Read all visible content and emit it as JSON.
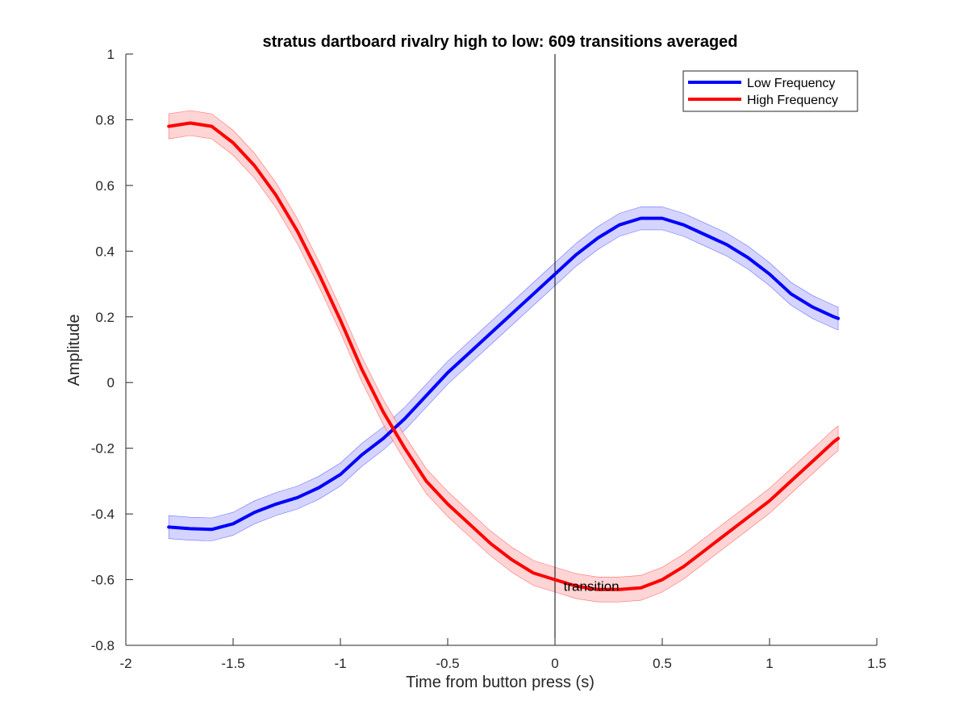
{
  "chart_data": {
    "type": "line",
    "title": "stratus dartboard rivalry high to low: 609 transitions averaged",
    "xlabel": "Time from button press (s)",
    "ylabel": "Amplitude",
    "xlim": [
      -2,
      1.5
    ],
    "ylim": [
      -0.8,
      1
    ],
    "x_ticks": [
      -2,
      -1.5,
      -1,
      -0.5,
      0,
      0.5,
      1,
      1.5
    ],
    "x_tick_labels": [
      "-2",
      "-1.5",
      "-1",
      "-0.5",
      "0",
      "0.5",
      "1",
      "1.5"
    ],
    "y_ticks": [
      -0.8,
      -0.6,
      -0.4,
      -0.2,
      0,
      0.2,
      0.4,
      0.6,
      0.8,
      1
    ],
    "y_tick_labels": [
      "-0.8",
      "-0.6",
      "-0.4",
      "-0.2",
      "0",
      "0.2",
      "0.4",
      "0.6",
      "0.8",
      "1"
    ],
    "grid": false,
    "legend_position": "top-right",
    "x": [
      -1.8,
      -1.7,
      -1.6,
      -1.5,
      -1.4,
      -1.3,
      -1.2,
      -1.1,
      -1.0,
      -0.9,
      -0.8,
      -0.7,
      -0.6,
      -0.5,
      -0.4,
      -0.3,
      -0.2,
      -0.1,
      0.0,
      0.1,
      0.2,
      0.3,
      0.4,
      0.5,
      0.6,
      0.7,
      0.8,
      0.9,
      1.0,
      1.1,
      1.2,
      1.3,
      1.32
    ],
    "series": [
      {
        "name": "Low Frequency",
        "color": "#0000ff",
        "band_color": "#ccccff",
        "values": [
          -0.44,
          -0.445,
          -0.447,
          -0.43,
          -0.395,
          -0.37,
          -0.35,
          -0.32,
          -0.28,
          -0.22,
          -0.17,
          -0.11,
          -0.04,
          0.03,
          0.09,
          0.15,
          0.21,
          0.27,
          0.33,
          0.39,
          0.44,
          0.48,
          0.5,
          0.5,
          0.48,
          0.45,
          0.42,
          0.38,
          0.33,
          0.27,
          0.23,
          0.2,
          0.195
        ],
        "band_halfwidth": 0.035
      },
      {
        "name": "High Frequency",
        "color": "#ff0000",
        "band_color": "#ffcccc",
        "values": [
          0.78,
          0.79,
          0.78,
          0.73,
          0.66,
          0.57,
          0.46,
          0.33,
          0.19,
          0.04,
          -0.09,
          -0.2,
          -0.3,
          -0.37,
          -0.43,
          -0.49,
          -0.54,
          -0.58,
          -0.6,
          -0.62,
          -0.63,
          -0.63,
          -0.625,
          -0.6,
          -0.56,
          -0.51,
          -0.46,
          -0.41,
          -0.36,
          -0.3,
          -0.24,
          -0.18,
          -0.17
        ],
        "band_halfwidth": 0.038
      }
    ],
    "vertical_line": {
      "x": 0,
      "color": "#000000"
    },
    "annotation": {
      "text": "transition",
      "x": 0.04,
      "y": -0.62
    }
  }
}
